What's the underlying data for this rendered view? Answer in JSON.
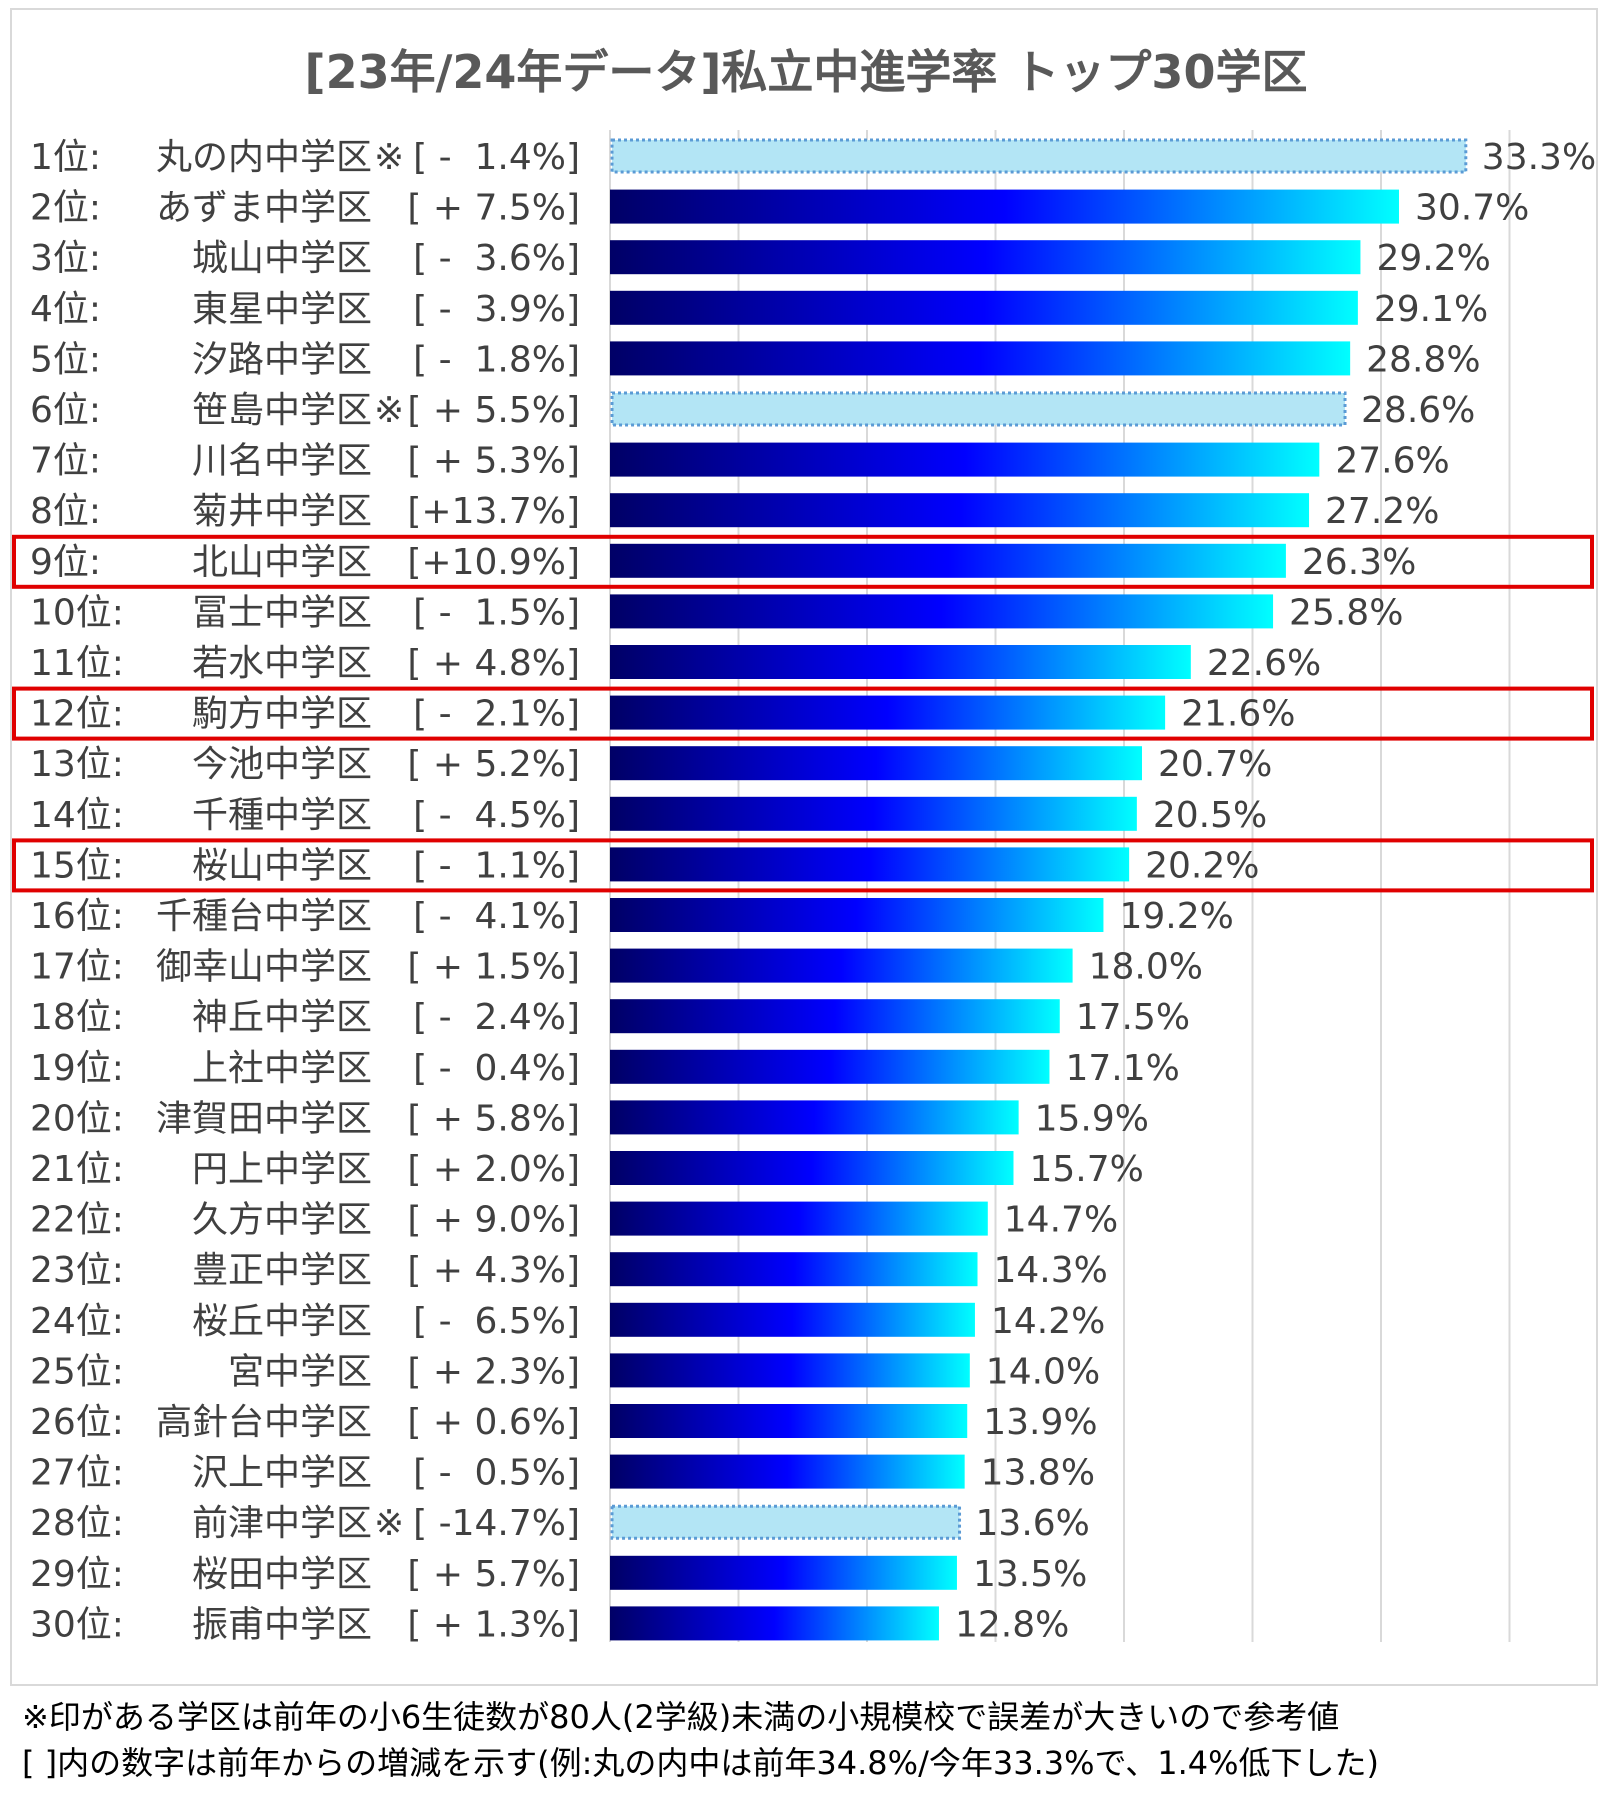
{
  "chart_data": {
    "type": "bar",
    "orientation": "horizontal",
    "title": "[23年/24年データ]私立中進学率 トップ30学区",
    "xlim": [
      0,
      35
    ],
    "grid": true,
    "colors": {
      "bar_gradient_start": "#000066",
      "bar_gradient_mid": "#0000ff",
      "bar_gradient_end": "#00ffff",
      "reference_fill": "#b3e5f5",
      "reference_border": "#5b9bd5",
      "highlight_box": "#e00000"
    },
    "rows": [
      {
        "rank": "1位:",
        "name": "丸の内中学区",
        "mark": "※",
        "change": "[ -  1.4%]",
        "value": 33.3,
        "label": "33.3%",
        "reference": true,
        "highlight": false
      },
      {
        "rank": "2位:",
        "name": "あずま中学区",
        "mark": "",
        "change": "[ + 7.5%]",
        "value": 30.7,
        "label": "30.7%",
        "reference": false,
        "highlight": false
      },
      {
        "rank": "3位:",
        "name": "城山中学区",
        "mark": "",
        "change": "[ -  3.6%]",
        "value": 29.2,
        "label": "29.2%",
        "reference": false,
        "highlight": false
      },
      {
        "rank": "4位:",
        "name": "東星中学区",
        "mark": "",
        "change": "[ -  3.9%]",
        "value": 29.1,
        "label": "29.1%",
        "reference": false,
        "highlight": false
      },
      {
        "rank": "5位:",
        "name": "汐路中学区",
        "mark": "",
        "change": "[ -  1.8%]",
        "value": 28.8,
        "label": "28.8%",
        "reference": false,
        "highlight": false
      },
      {
        "rank": "6位:",
        "name": "笹島中学区",
        "mark": "※",
        "change": "[ + 5.5%]",
        "value": 28.6,
        "label": "28.6%",
        "reference": true,
        "highlight": false
      },
      {
        "rank": "7位:",
        "name": "川名中学区",
        "mark": "",
        "change": "[ + 5.3%]",
        "value": 27.6,
        "label": "27.6%",
        "reference": false,
        "highlight": false
      },
      {
        "rank": "8位:",
        "name": "菊井中学区",
        "mark": "",
        "change": "[+13.7%]",
        "value": 27.2,
        "label": "27.2%",
        "reference": false,
        "highlight": false
      },
      {
        "rank": "9位:",
        "name": "北山中学区",
        "mark": "",
        "change": "[+10.9%]",
        "value": 26.3,
        "label": "26.3%",
        "reference": false,
        "highlight": true
      },
      {
        "rank": "10位:",
        "name": "冨士中学区",
        "mark": "",
        "change": "[ -  1.5%]",
        "value": 25.8,
        "label": "25.8%",
        "reference": false,
        "highlight": false
      },
      {
        "rank": "11位:",
        "name": "若水中学区",
        "mark": "",
        "change": "[ + 4.8%]",
        "value": 22.6,
        "label": "22.6%",
        "reference": false,
        "highlight": false
      },
      {
        "rank": "12位:",
        "name": "駒方中学区",
        "mark": "",
        "change": "[ -  2.1%]",
        "value": 21.6,
        "label": "21.6%",
        "reference": false,
        "highlight": true
      },
      {
        "rank": "13位:",
        "name": "今池中学区",
        "mark": "",
        "change": "[ + 5.2%]",
        "value": 20.7,
        "label": "20.7%",
        "reference": false,
        "highlight": false
      },
      {
        "rank": "14位:",
        "name": "千種中学区",
        "mark": "",
        "change": "[ -  4.5%]",
        "value": 20.5,
        "label": "20.5%",
        "reference": false,
        "highlight": false
      },
      {
        "rank": "15位:",
        "name": "桜山中学区",
        "mark": "",
        "change": "[ -  1.1%]",
        "value": 20.2,
        "label": "20.2%",
        "reference": false,
        "highlight": true
      },
      {
        "rank": "16位:",
        "name": "千種台中学区",
        "mark": "",
        "change": "[ -  4.1%]",
        "value": 19.2,
        "label": "19.2%",
        "reference": false,
        "highlight": false
      },
      {
        "rank": "17位:",
        "name": "御幸山中学区",
        "mark": "",
        "change": "[ + 1.5%]",
        "value": 18.0,
        "label": "18.0%",
        "reference": false,
        "highlight": false
      },
      {
        "rank": "18位:",
        "name": "神丘中学区",
        "mark": "",
        "change": "[ -  2.4%]",
        "value": 17.5,
        "label": "17.5%",
        "reference": false,
        "highlight": false
      },
      {
        "rank": "19位:",
        "name": "上社中学区",
        "mark": "",
        "change": "[ -  0.4%]",
        "value": 17.1,
        "label": "17.1%",
        "reference": false,
        "highlight": false
      },
      {
        "rank": "20位:",
        "name": "津賀田中学区",
        "mark": "",
        "change": "[ + 5.8%]",
        "value": 15.9,
        "label": "15.9%",
        "reference": false,
        "highlight": false
      },
      {
        "rank": "21位:",
        "name": "円上中学区",
        "mark": "",
        "change": "[ + 2.0%]",
        "value": 15.7,
        "label": "15.7%",
        "reference": false,
        "highlight": false
      },
      {
        "rank": "22位:",
        "name": "久方中学区",
        "mark": "",
        "change": "[ + 9.0%]",
        "value": 14.7,
        "label": "14.7%",
        "reference": false,
        "highlight": false
      },
      {
        "rank": "23位:",
        "name": "豊正中学区",
        "mark": "",
        "change": "[ + 4.3%]",
        "value": 14.3,
        "label": "14.3%",
        "reference": false,
        "highlight": false
      },
      {
        "rank": "24位:",
        "name": "桜丘中学区",
        "mark": "",
        "change": "[ -  6.5%]",
        "value": 14.2,
        "label": "14.2%",
        "reference": false,
        "highlight": false
      },
      {
        "rank": "25位:",
        "name": "宮中学区",
        "mark": "",
        "change": "[ + 2.3%]",
        "value": 14.0,
        "label": "14.0%",
        "reference": false,
        "highlight": false
      },
      {
        "rank": "26位:",
        "name": "高針台中学区",
        "mark": "",
        "change": "[ + 0.6%]",
        "value": 13.9,
        "label": "13.9%",
        "reference": false,
        "highlight": false
      },
      {
        "rank": "27位:",
        "name": "沢上中学区",
        "mark": "",
        "change": "[ -  0.5%]",
        "value": 13.8,
        "label": "13.8%",
        "reference": false,
        "highlight": false
      },
      {
        "rank": "28位:",
        "name": "前津中学区",
        "mark": "※",
        "change": "[ -14.7%]",
        "value": 13.6,
        "label": "13.6%",
        "reference": true,
        "highlight": false
      },
      {
        "rank": "29位:",
        "name": "桜田中学区",
        "mark": "",
        "change": "[ + 5.7%]",
        "value": 13.5,
        "label": "13.5%",
        "reference": false,
        "highlight": false
      },
      {
        "rank": "30位:",
        "name": "振甫中学区",
        "mark": "",
        "change": "[ + 1.3%]",
        "value": 12.8,
        "label": "12.8%",
        "reference": false,
        "highlight": false
      }
    ]
  },
  "footnotes": [
    "※印がある学区は前年の小6生徒数が80人(2学級)未満の小規模校で誤差が大きいので参考値",
    "[ ]内の数字は前年からの増減を示す(例:丸の内中は前年34.8%/今年33.3%で、1.4%低下した)"
  ]
}
